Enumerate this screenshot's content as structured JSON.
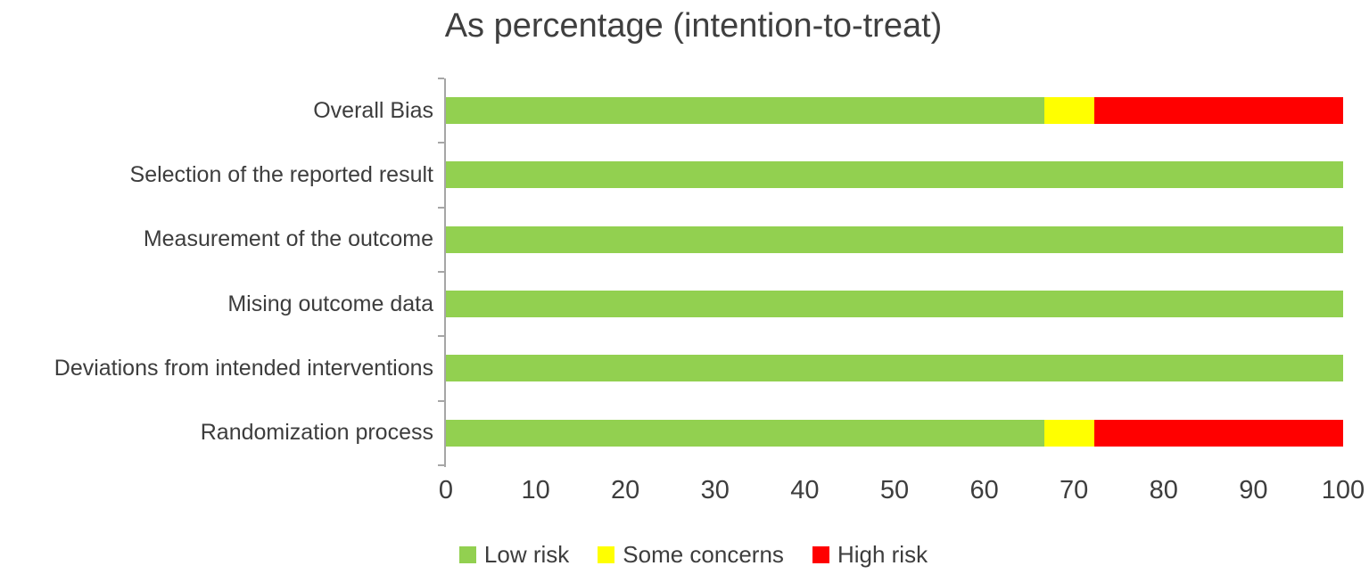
{
  "title": "As percentage (intention-to-treat)",
  "chart_data": {
    "type": "bar",
    "orientation": "horizontal",
    "stacked": true,
    "title": "As percentage (intention-to-treat)",
    "categories": [
      "Overall Bias",
      "Selection of the reported result",
      "Measurement of the outcome",
      "Mising outcome data",
      "Deviations from intended interventions",
      "Randomization process"
    ],
    "series": [
      {
        "name": "Low risk",
        "color": "#92D050",
        "values": [
          66.7,
          100,
          100,
          100,
          100,
          66.7
        ]
      },
      {
        "name": "Some concerns",
        "color": "#FFFF00",
        "values": [
          5.6,
          0,
          0,
          0,
          0,
          5.6
        ]
      },
      {
        "name": "High risk",
        "color": "#FF0000",
        "values": [
          27.7,
          0,
          0,
          0,
          0,
          27.7
        ]
      }
    ],
    "xlabel": "",
    "ylabel": "",
    "xlim": [
      0,
      100
    ],
    "x_ticks": [
      0,
      10,
      20,
      30,
      40,
      50,
      60,
      70,
      80,
      90,
      100
    ],
    "grid": false,
    "legend_position": "bottom",
    "axis_color": "#a6a6a6",
    "text_color": "#3d3d3d"
  },
  "legend": {
    "items": [
      {
        "label": "Low risk",
        "color": "#92D050"
      },
      {
        "label": "Some concerns",
        "color": "#FFFF00"
      },
      {
        "label": "High risk",
        "color": "#FF0000"
      }
    ]
  }
}
